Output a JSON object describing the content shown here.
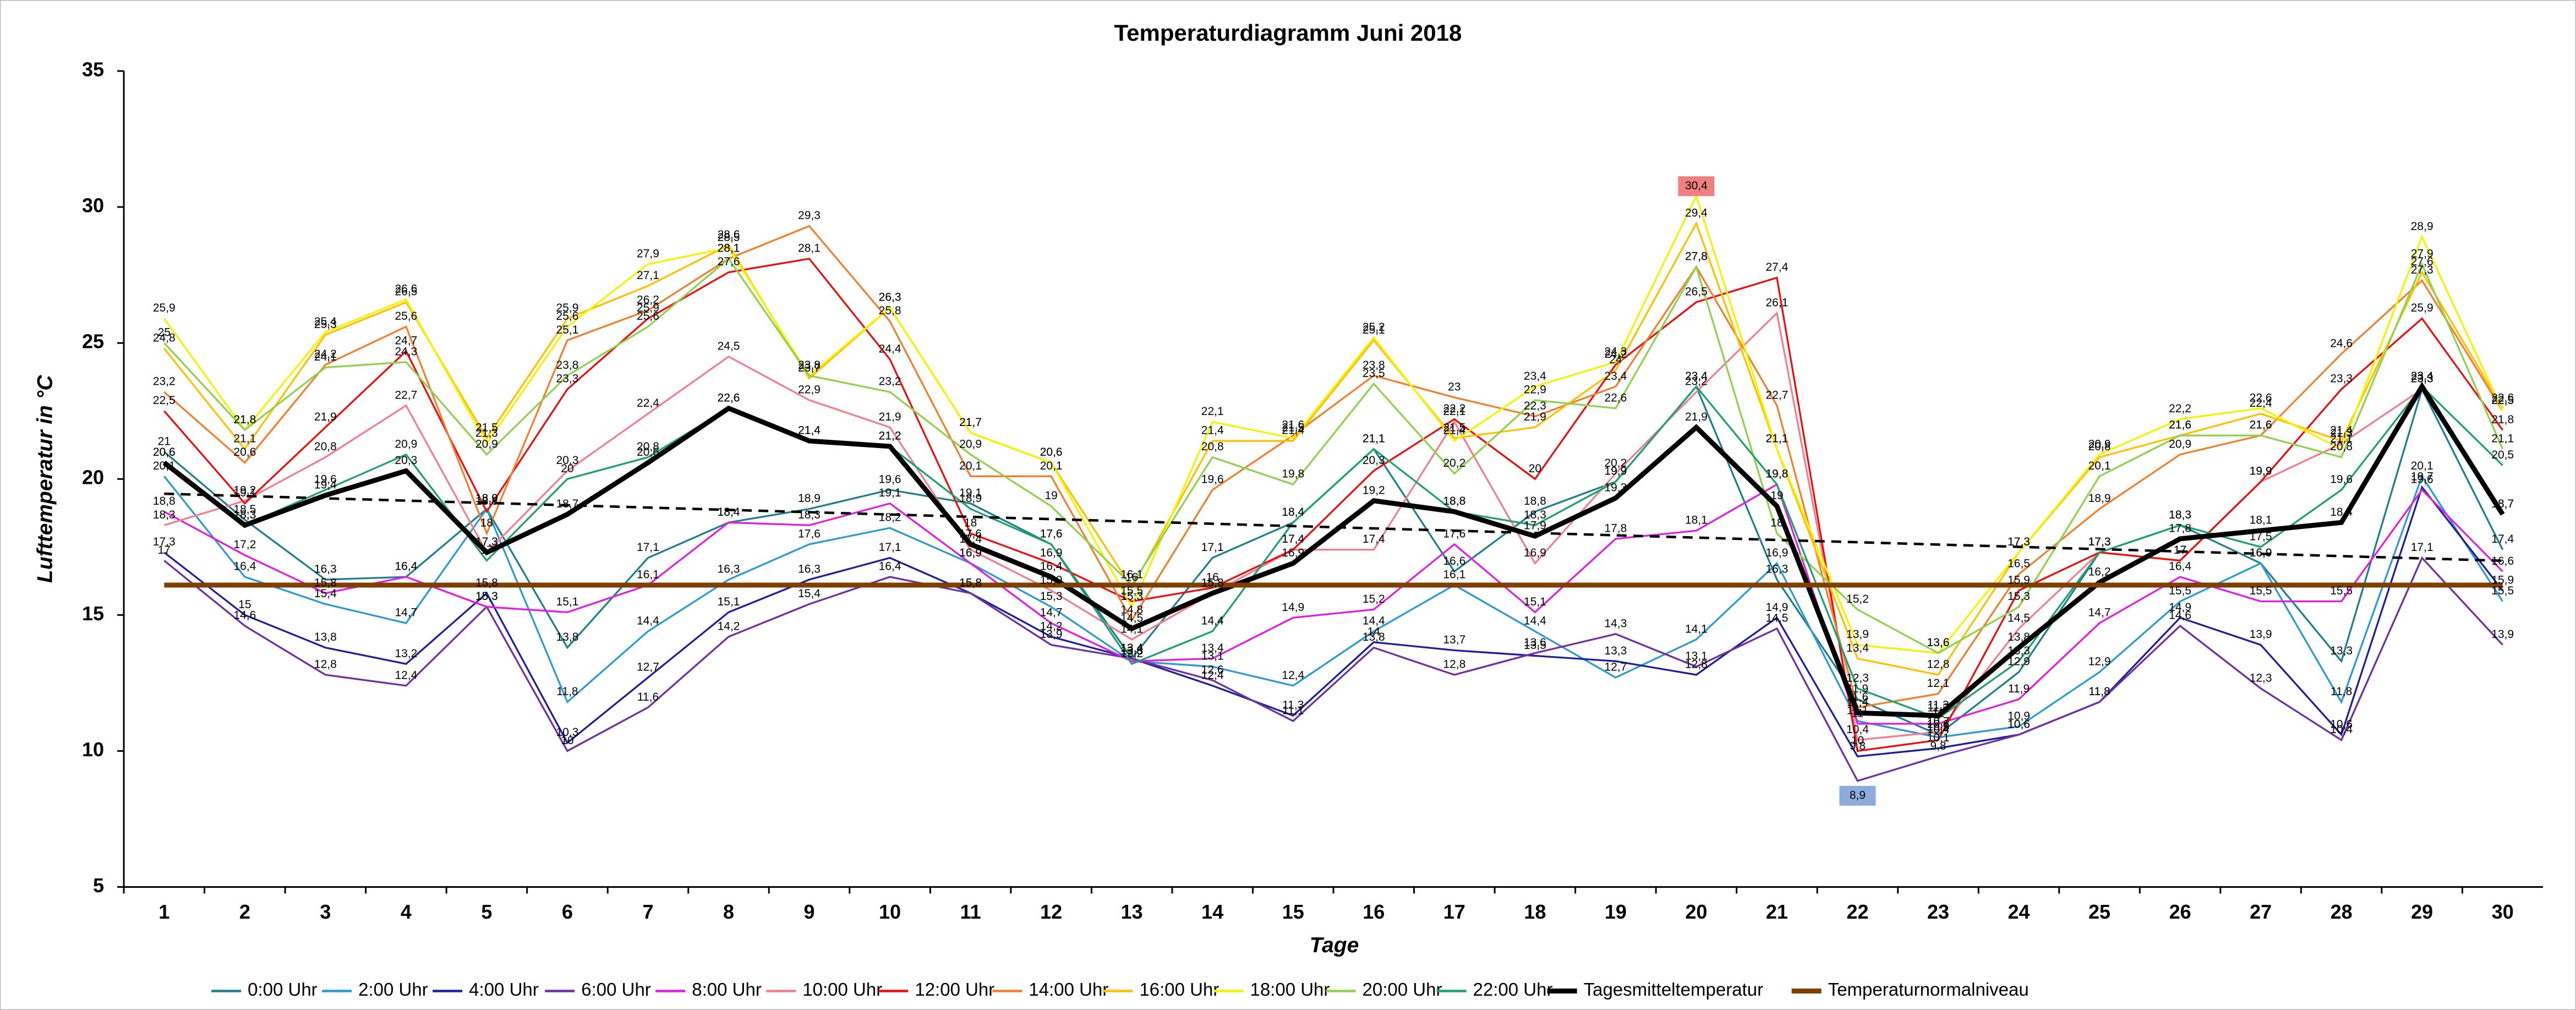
{
  "chart_data": {
    "type": "line",
    "title": "Temperaturdiagramm Juni 2018",
    "x_label": "Tage",
    "y_label": "Lufttemperatur in °C",
    "categories": [
      "1",
      "2",
      "3",
      "4",
      "5",
      "6",
      "7",
      "8",
      "9",
      "10",
      "11",
      "12",
      "13",
      "14",
      "15",
      "16",
      "17",
      "18",
      "19",
      "20",
      "21",
      "22",
      "23",
      "24",
      "25",
      "26",
      "27",
      "28",
      "29",
      "30"
    ],
    "ylim": [
      5,
      35
    ],
    "yticks": [
      5,
      10,
      15,
      20,
      25,
      30,
      35
    ],
    "grid": false,
    "legend": "bottom",
    "trendline": "Tagesmitteltemperatur",
    "highlight_extremes": true,
    "series": [
      {
        "name": "0:00 Uhr",
        "color": "#1f7f8c",
        "values": [
          21,
          18.5,
          16.3,
          16.4,
          18.9,
          13.8,
          17.1,
          18.4,
          18.9,
          19.6,
          19.1,
          17.6,
          13.4,
          17.1,
          18.4,
          21.1,
          16.6,
          18.8,
          19.9,
          23.4,
          16.3,
          11.9,
          10.6,
          12.9,
          17.3,
          18.3,
          16.9,
          13.3,
          23.3,
          17.4
        ],
        "value_labels": [
          "21",
          "18,5",
          "16,3",
          "16,4",
          "18,9",
          "13,8",
          "17,1",
          "18,4",
          "18,9",
          "19,6",
          "19,1",
          "17,6",
          "13,4",
          "17,1",
          "18,4",
          "21,1",
          "16,6",
          "18,8",
          "19,9",
          "23,4",
          "16,3",
          "11,9",
          "10,6",
          "12,9",
          "17,3",
          "18,3",
          "16,9",
          "13,3",
          "23,3",
          "17,4"
        ]
      },
      {
        "name": "2:00 Uhr",
        "color": "#2e9ad0",
        "values": [
          20.1,
          16.4,
          15.4,
          14.7,
          18.9,
          11.8,
          14.4,
          16.3,
          17.6,
          18.2,
          16.9,
          15.3,
          13.3,
          13.1,
          12.4,
          14.4,
          16.1,
          14.4,
          12.7,
          14.1,
          16.9,
          11.1,
          10.5,
          10.9,
          12.9,
          15.5,
          16.9,
          11.8,
          20.1,
          15.5
        ],
        "value_labels": [
          "20,1",
          "16,4",
          "15,4",
          "14,7",
          "18,9",
          "11,8",
          "14,4",
          "16,3",
          "17,6",
          "18,2",
          "16,9",
          "15,3",
          "13,3",
          "13,1",
          "12,4",
          "14,4",
          "16,1",
          "14,4",
          "12,7",
          "14,1",
          "16,9",
          "11,1",
          "10,5",
          "10,9",
          "12,9",
          "15,5",
          "16,9",
          "11,8",
          "20,1",
          "15,5"
        ]
      },
      {
        "name": "4:00 Uhr",
        "color": "#1f1f9a",
        "values": [
          17.3,
          15,
          13.8,
          13.2,
          15.8,
          10.3,
          12.7,
          15.1,
          16.3,
          17.1,
          15.8,
          14.2,
          13.4,
          12.4,
          11.3,
          14,
          13.7,
          13.5,
          13.3,
          12.8,
          14.9,
          9.8,
          10.1,
          10.6,
          11.8,
          14.9,
          13.9,
          10.6,
          19.7,
          15.9
        ],
        "value_labels": [
          "17,3",
          "15",
          "13,8",
          "13,2",
          "15,8",
          "10,3",
          "12,7",
          "15,1",
          "16,3",
          "17,1",
          "15,8",
          "14,2",
          "13,4",
          "12,4",
          "11,3",
          "14",
          "13,7",
          "13,5",
          "13,3",
          "12,8",
          "14,9",
          "9,8",
          "10,1",
          "10,6",
          "11,8",
          "14,9",
          "13,9",
          "10,6",
          "19,7",
          "15,9"
        ]
      },
      {
        "name": "6:00 Uhr",
        "color": "#7030a0",
        "values": [
          17,
          14.6,
          12.8,
          12.4,
          15.3,
          10,
          11.6,
          14.2,
          15.4,
          16.4,
          15.8,
          13.9,
          13.4,
          12.6,
          11.1,
          13.8,
          12.8,
          13.6,
          14.3,
          13.1,
          14.5,
          8.9,
          9.8,
          10.6,
          11.8,
          14.6,
          12.3,
          10.4,
          17.1,
          13.9
        ],
        "value_labels": [
          "17",
          "14,6",
          "12,8",
          "12,4",
          "15,3",
          "10",
          "11,6",
          "14,2",
          "15,4",
          "16,4",
          "15,8",
          "13,9",
          "13,4",
          "12,6",
          "11,1",
          "13,8",
          "12,8",
          "13,6",
          "14,3",
          "13,1",
          "14,5",
          "8,9",
          "9,8",
          "10,6",
          "11,8",
          "14,6",
          "12,3",
          "10,4",
          "17,1",
          "13,9"
        ]
      },
      {
        "name": "8:00 Uhr",
        "color": "#e020e0",
        "values": [
          18.8,
          17.2,
          15.8,
          16.4,
          15.3,
          15.1,
          16.1,
          18.4,
          18.3,
          19.1,
          16.9,
          14.7,
          13.3,
          13.4,
          14.9,
          15.2,
          17.6,
          15.1,
          17.8,
          18.1,
          19.8,
          11,
          11,
          11.9,
          14.7,
          16.4,
          15.5,
          15.5,
          19.6,
          16.6
        ],
        "value_labels": [
          "18,8",
          "17,2",
          "15,8",
          "16,4",
          "15,3",
          "15,1",
          "16,1",
          "18,4",
          "18,3",
          "19,1",
          "16,9",
          "14,7",
          "13,3",
          "13,4",
          "14,9",
          "15,2",
          "17,6",
          "15,1",
          "17,8",
          "18,1",
          "19,8",
          "11",
          "11",
          "11,9",
          "14,7",
          "16,4",
          "15,5",
          "15,5",
          "19,6",
          "16,6"
        ]
      },
      {
        "name": "10:00 Uhr",
        "color": "#f08090",
        "values": [
          18.3,
          19.2,
          20.8,
          22.7,
          17.3,
          20.3,
          22.4,
          24.5,
          22.9,
          21.9,
          17.4,
          15.9,
          14.1,
          15.8,
          17.4,
          17.4,
          22.1,
          16.9,
          20.2,
          23.2,
          26.1,
          10.4,
          10.7,
          14.5,
          17.3,
          17,
          19.9,
          21.3,
          23.3,
          18.7
        ],
        "value_labels": [
          "18,3",
          "19,2",
          "20,8",
          "22,7",
          "17,3",
          "20,3",
          "22,4",
          "24,5",
          "22,9",
          "21,9",
          "17,4",
          "15,9",
          "14,1",
          "15,8",
          "17,4",
          "17,4",
          "22,1",
          "16,9",
          "20,2",
          "23,2",
          "26,1",
          "10,4",
          "10,7",
          "14,5",
          "17,3",
          "17",
          "19,9",
          "21,3",
          "23,3",
          "18,7"
        ]
      },
      {
        "name": "12:00 Uhr",
        "color": "#e81010",
        "values": [
          22.5,
          19.1,
          21.9,
          24.7,
          18.8,
          23.3,
          25.9,
          27.6,
          28.1,
          24.4,
          18,
          16.9,
          15.5,
          16,
          17.4,
          20.3,
          22.2,
          20,
          24.2,
          26.5,
          27.4,
          10,
          10.4,
          15.9,
          17.3,
          17,
          19.9,
          23.3,
          25.9,
          21.8
        ],
        "value_labels": [
          "22,5",
          "19,1",
          "21,9",
          "24,7",
          "18,8",
          "23,3",
          "25,9",
          "27,6",
          "28,1",
          "24,4",
          "18",
          "16,9",
          "15,5",
          "16",
          "17,4",
          "20,3",
          "22,2",
          "20",
          "24,2",
          "26,5",
          "27,4",
          "10",
          "10,4",
          "15,9",
          "17,3",
          "17",
          "19,9",
          "23,3",
          "25,9",
          "21,8"
        ]
      },
      {
        "name": "14:00 Uhr",
        "color": "#f08030",
        "values": [
          23.2,
          20.6,
          24.2,
          25.6,
          18,
          25.1,
          26.2,
          28.1,
          29.3,
          25.8,
          20.1,
          20.1,
          14.8,
          19.6,
          21.6,
          23.8,
          23,
          22.3,
          23.4,
          27.8,
          22.7,
          11.6,
          12.1,
          16.5,
          18.9,
          20.9,
          21.6,
          24.6,
          27.3,
          22.5
        ],
        "value_labels": [
          "23,2",
          "20,6",
          "24,2",
          "25,6",
          "18",
          "25,1",
          "26,2",
          "28,1",
          "29,3",
          "25,8",
          "20,1",
          "20,1",
          "14,8",
          "19,6",
          "21,6",
          "23,8",
          "23",
          "22,3",
          "23,4",
          "27,8",
          "22,7",
          "11,6",
          "12,1",
          "16,5",
          "18,9",
          "20,9",
          "21,6",
          "24,6",
          "27,3",
          "22,5"
        ]
      },
      {
        "name": "16:00 Uhr",
        "color": "#ffc000",
        "values": [
          24.8,
          21.1,
          25.3,
          26.5,
          21.5,
          25.9,
          27.1,
          28.6,
          23.7,
          26.3,
          21.7,
          20.6,
          16,
          21.4,
          21.4,
          25.1,
          21.5,
          21.9,
          24,
          29.4,
          21.1,
          13.4,
          12.8,
          17.3,
          20.8,
          21.6,
          22.4,
          21.4,
          27.6,
          22.6
        ],
        "value_labels": [
          "24,8",
          "21,1",
          "25,3",
          "26,5",
          "21,5",
          "25,9",
          "27,1",
          "28,6",
          "23,7",
          "26,3",
          "21,7",
          "20,6",
          "16",
          "21,4",
          "21,4",
          "25,1",
          "21,5",
          "21,9",
          "24",
          "29,4",
          "21,1",
          "13,4",
          "12,8",
          "17,3",
          "20,8",
          "21,6",
          "22,4",
          "21,4",
          "27,6",
          "22,6"
        ]
      },
      {
        "name": "18:00 Uhr",
        "color": "#f4f400",
        "values": [
          25.9,
          21.8,
          25.4,
          26.6,
          21.3,
          25.6,
          27.9,
          28.5,
          23.8,
          26.3,
          21.7,
          20.6,
          15.3,
          22.1,
          21.5,
          25.2,
          21.4,
          23.4,
          24.3,
          30.4,
          21.1,
          13.9,
          13.6,
          17.3,
          20.9,
          22.2,
          22.6,
          21.1,
          28.9,
          22.5
        ],
        "value_labels": [
          "25,9",
          "21,8",
          "25,4",
          "26,6",
          "21,3",
          "25,6",
          "27,9",
          "28,5",
          "23,8",
          "26,3",
          "21,7",
          "20,6",
          "15,3",
          "22,1",
          "21,5",
          "25,2",
          "21,4",
          "23,4",
          "24,3",
          "30,4",
          "21,1",
          "13,9",
          "13,6",
          "17,3",
          "20,9",
          "22,2",
          "22,6",
          "21,1",
          "28,9",
          "22,5"
        ]
      },
      {
        "name": "20:00 Uhr",
        "color": "#92d050",
        "values": [
          25,
          21.8,
          24.1,
          24.3,
          20.9,
          23.8,
          25.6,
          28.1,
          23.8,
          23.2,
          20.9,
          19,
          16.1,
          20.8,
          19.8,
          23.5,
          20.2,
          22.9,
          22.6,
          27.8,
          18,
          15.2,
          13.6,
          15.3,
          20.1,
          21.6,
          21.6,
          20.8,
          27.9,
          21.1
        ],
        "value_labels": [
          "25",
          "21,8",
          "24,1",
          "24,3",
          "20,9",
          "23,8",
          "25,6",
          "28,1",
          "23,8",
          "23,2",
          "20,9",
          "19",
          "16,1",
          "20,8",
          "19,8",
          "23,5",
          "20,2",
          "22,9",
          "22,6",
          "27,8",
          "18",
          "15,2",
          "13,6",
          "15,3",
          "20,1",
          "21,6",
          "21,6",
          "20,8",
          "27,9",
          "21,1"
        ]
      },
      {
        "name": "22:00 Uhr",
        "color": "#20a070",
        "values": [
          20.6,
          18.3,
          19.6,
          20.9,
          17,
          20,
          20.8,
          22.6,
          21.4,
          21.2,
          18.9,
          17.6,
          13.2,
          14.4,
          18.4,
          21.1,
          18.8,
          18.3,
          19.9,
          23.4,
          19.8,
          12.3,
          11.2,
          13.3,
          17.3,
          18.3,
          17.5,
          19.6,
          23.4,
          20.5
        ],
        "value_labels": [
          "20,6",
          "18,3",
          "19,6",
          "20,9",
          "17",
          "20",
          "20,8",
          "22,6",
          "21,4",
          "21,2",
          "18,9",
          "17,6",
          "13,2",
          "14,4",
          "18,4",
          "21,1",
          "18,8",
          "18,3",
          "19,9",
          "23,4",
          "19,8",
          "12,3",
          "11,2",
          "13,3",
          "17,3",
          "18,3",
          "17,5",
          "19,6",
          "23,4",
          "20,5"
        ]
      },
      {
        "name": "Tagesmitteltemperatur",
        "color": "#000000",
        "values": [
          20.6,
          18.3,
          19.4,
          20.3,
          17.3,
          18.7,
          20.6,
          22.6,
          21.4,
          21.2,
          17.6,
          16.4,
          14.5,
          15.8,
          16.9,
          19.2,
          18.8,
          17.9,
          19.3,
          21.9,
          19,
          11.4,
          11.3,
          13.8,
          16.2,
          17.8,
          18.1,
          18.4,
          23.4,
          18.7
        ],
        "value_labels": [
          "20,6",
          "18,3",
          "19,4",
          "20,3",
          "17,3",
          "18,7",
          "20,6",
          "22,6",
          "21,4",
          "21,2",
          "17,6",
          "16,4",
          "14,5",
          "15,8",
          "16,9",
          "19,2",
          "18,8",
          "17,9",
          "19,3",
          "21,9",
          "19",
          "11,4",
          "11,3",
          "13,8",
          "16,2",
          "17,8",
          "18,1",
          "18,4",
          "23,4",
          "18,7"
        ]
      },
      {
        "name": "Temperaturnormalniveau",
        "color": "#7f3f00",
        "values": [
          16.1,
          16.1,
          16.1,
          16.1,
          16.1,
          16.1,
          16.1,
          16.1,
          16.1,
          16.1,
          16.1,
          16.1,
          16.1,
          16.1,
          16.1,
          16.1,
          16.1,
          16.1,
          16.1,
          16.1,
          16.1,
          16.1,
          16.1,
          16.1,
          16.1,
          16.1,
          16.1,
          16.1,
          16.1,
          16.1
        ]
      }
    ]
  }
}
